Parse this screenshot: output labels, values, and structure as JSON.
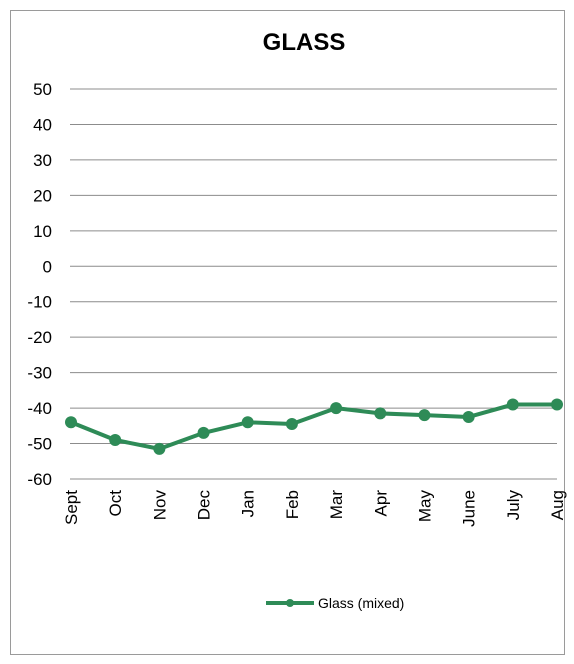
{
  "chart_data": {
    "type": "line",
    "title": "GLASS",
    "xlabel": "",
    "ylabel": "",
    "categories": [
      "Sept",
      "Oct",
      "Nov",
      "Dec",
      "Jan",
      "Feb",
      "Mar",
      "Apr",
      "May",
      "June",
      "July",
      "Aug"
    ],
    "ylim": [
      -60,
      50
    ],
    "yticks": [
      50,
      40,
      30,
      20,
      10,
      0,
      -10,
      -20,
      -30,
      -40,
      -50,
      -60
    ],
    "grid": true,
    "legend_position": "bottom",
    "series": [
      {
        "name": "Glass (mixed)",
        "color": "#2e8b57",
        "values": [
          -44,
          -49,
          -51.5,
          -47,
          -44,
          -44.5,
          -40,
          -41.5,
          -42,
          -42.5,
          -39,
          -39
        ]
      }
    ]
  }
}
